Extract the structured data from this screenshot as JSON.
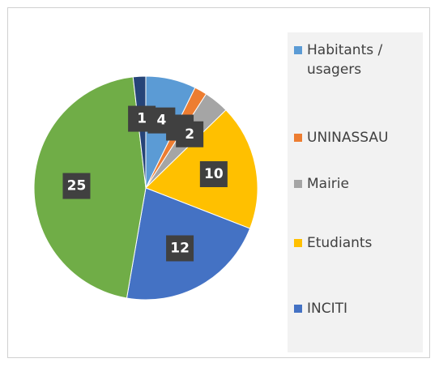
{
  "chart_data": {
    "type": "pie",
    "categories": [
      "Habitants / usagers",
      "UNINASSAU",
      "Mairie",
      "Etudiants",
      "INCITI",
      null,
      null
    ],
    "values": [
      4,
      1,
      2,
      10,
      12,
      25,
      1
    ],
    "colors": [
      "#5b9bd5",
      "#ed7d31",
      "#a5a5a5",
      "#ffc000",
      "#4472c4",
      "#70ad47",
      "#264478"
    ],
    "legend": "right"
  }
}
